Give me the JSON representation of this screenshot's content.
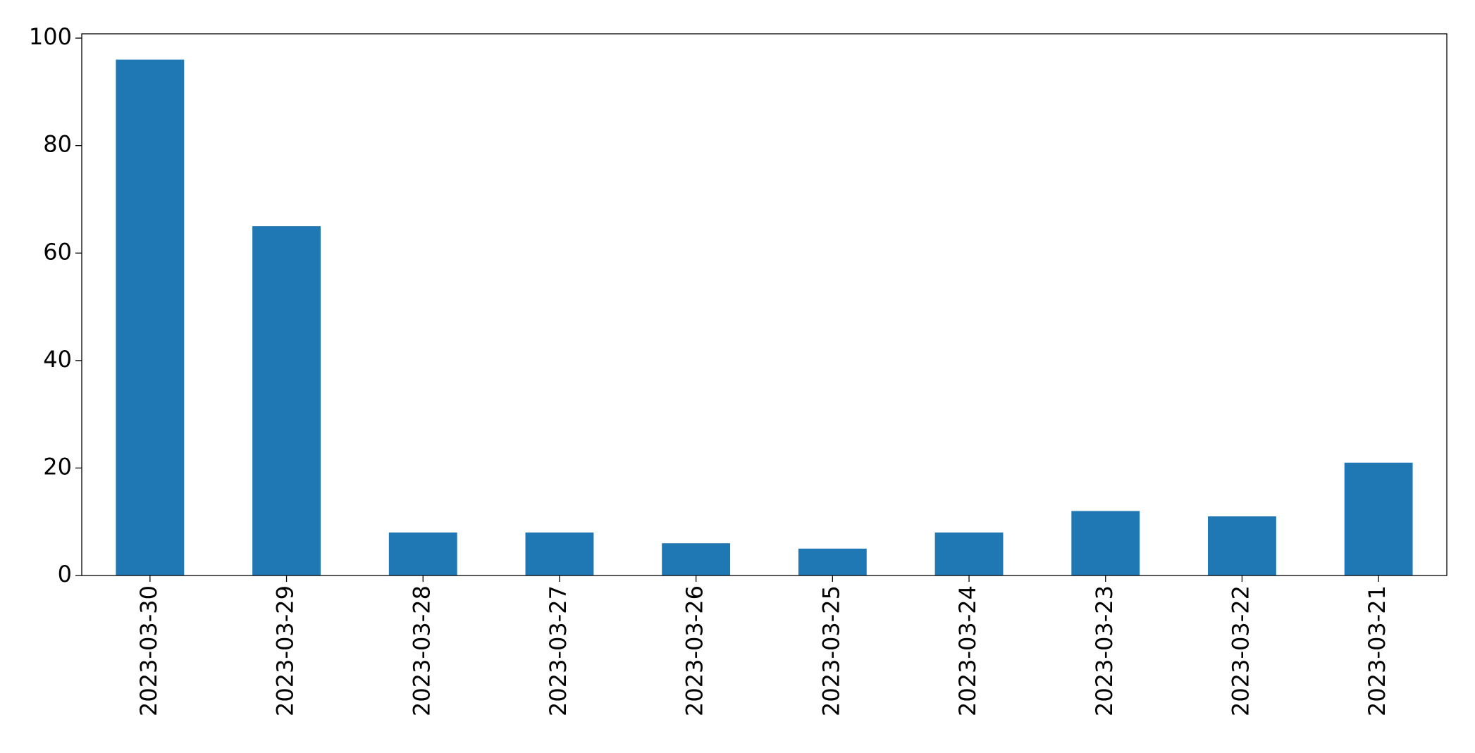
{
  "chart_data": {
    "type": "bar",
    "categories": [
      "2023-03-30",
      "2023-03-29",
      "2023-03-28",
      "2023-03-27",
      "2023-03-26",
      "2023-03-25",
      "2023-03-24",
      "2023-03-23",
      "2023-03-22",
      "2023-03-21"
    ],
    "values": [
      96,
      65,
      8,
      8,
      6,
      5,
      8,
      12,
      11,
      21
    ],
    "color": "#1f77b4",
    "ylim": [
      0,
      100.8
    ],
    "yticks": [
      0,
      20,
      40,
      60,
      80,
      100
    ],
    "grid": false
  }
}
